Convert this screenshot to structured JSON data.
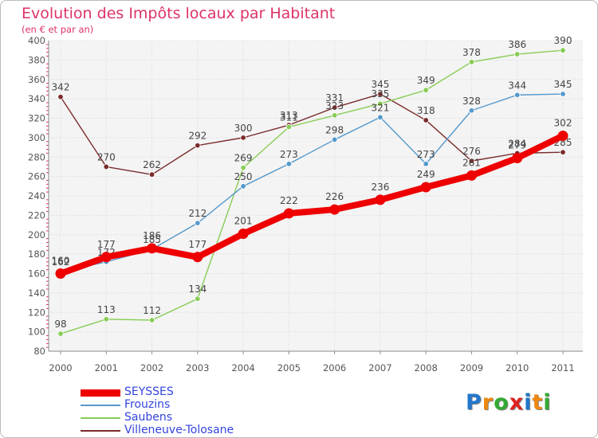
{
  "title": "Evolution des Impôts locaux par Habitant",
  "subtitle": "(en € et par an)",
  "brand": {
    "letters": [
      "P",
      "r",
      "o",
      "x",
      "i",
      "t",
      "i"
    ],
    "colors": [
      "#2277cc",
      "#ee8811",
      "#33aa33",
      "#dd2222",
      "#2277cc",
      "#ee8811",
      "#33aa33"
    ]
  },
  "chart_data": {
    "type": "line",
    "x": [
      "2000",
      "2001",
      "2002",
      "2003",
      "2004",
      "2005",
      "2006",
      "2007",
      "2008",
      "2009",
      "2010",
      "2011"
    ],
    "ylim": [
      80,
      400
    ],
    "yticks": [
      80,
      100,
      120,
      140,
      160,
      180,
      200,
      220,
      240,
      260,
      280,
      300,
      320,
      340,
      360,
      380,
      400
    ],
    "grid": true,
    "legend_position": "bottom-left",
    "series": [
      {
        "name": "Villeneuve-Tolosane",
        "color": "#7a2b2b",
        "values": [
          342,
          270,
          262,
          292,
          300,
          313,
          331,
          345,
          318,
          276,
          284,
          285
        ]
      },
      {
        "name": "Saubens",
        "color": "#88cc55",
        "values": [
          98,
          113,
          112,
          134,
          269,
          311,
          323,
          335,
          349,
          378,
          386,
          390
        ]
      },
      {
        "name": "Frouzins",
        "color": "#5599cc",
        "values": [
          162,
          172,
          185,
          212,
          250,
          273,
          298,
          321,
          273,
          328,
          344,
          345
        ]
      },
      {
        "name": "SEYSSES",
        "color": "#ee0000",
        "values": [
          160,
          177,
          186,
          177,
          201,
          222,
          226,
          236,
          249,
          261,
          279,
          302
        ]
      }
    ]
  }
}
